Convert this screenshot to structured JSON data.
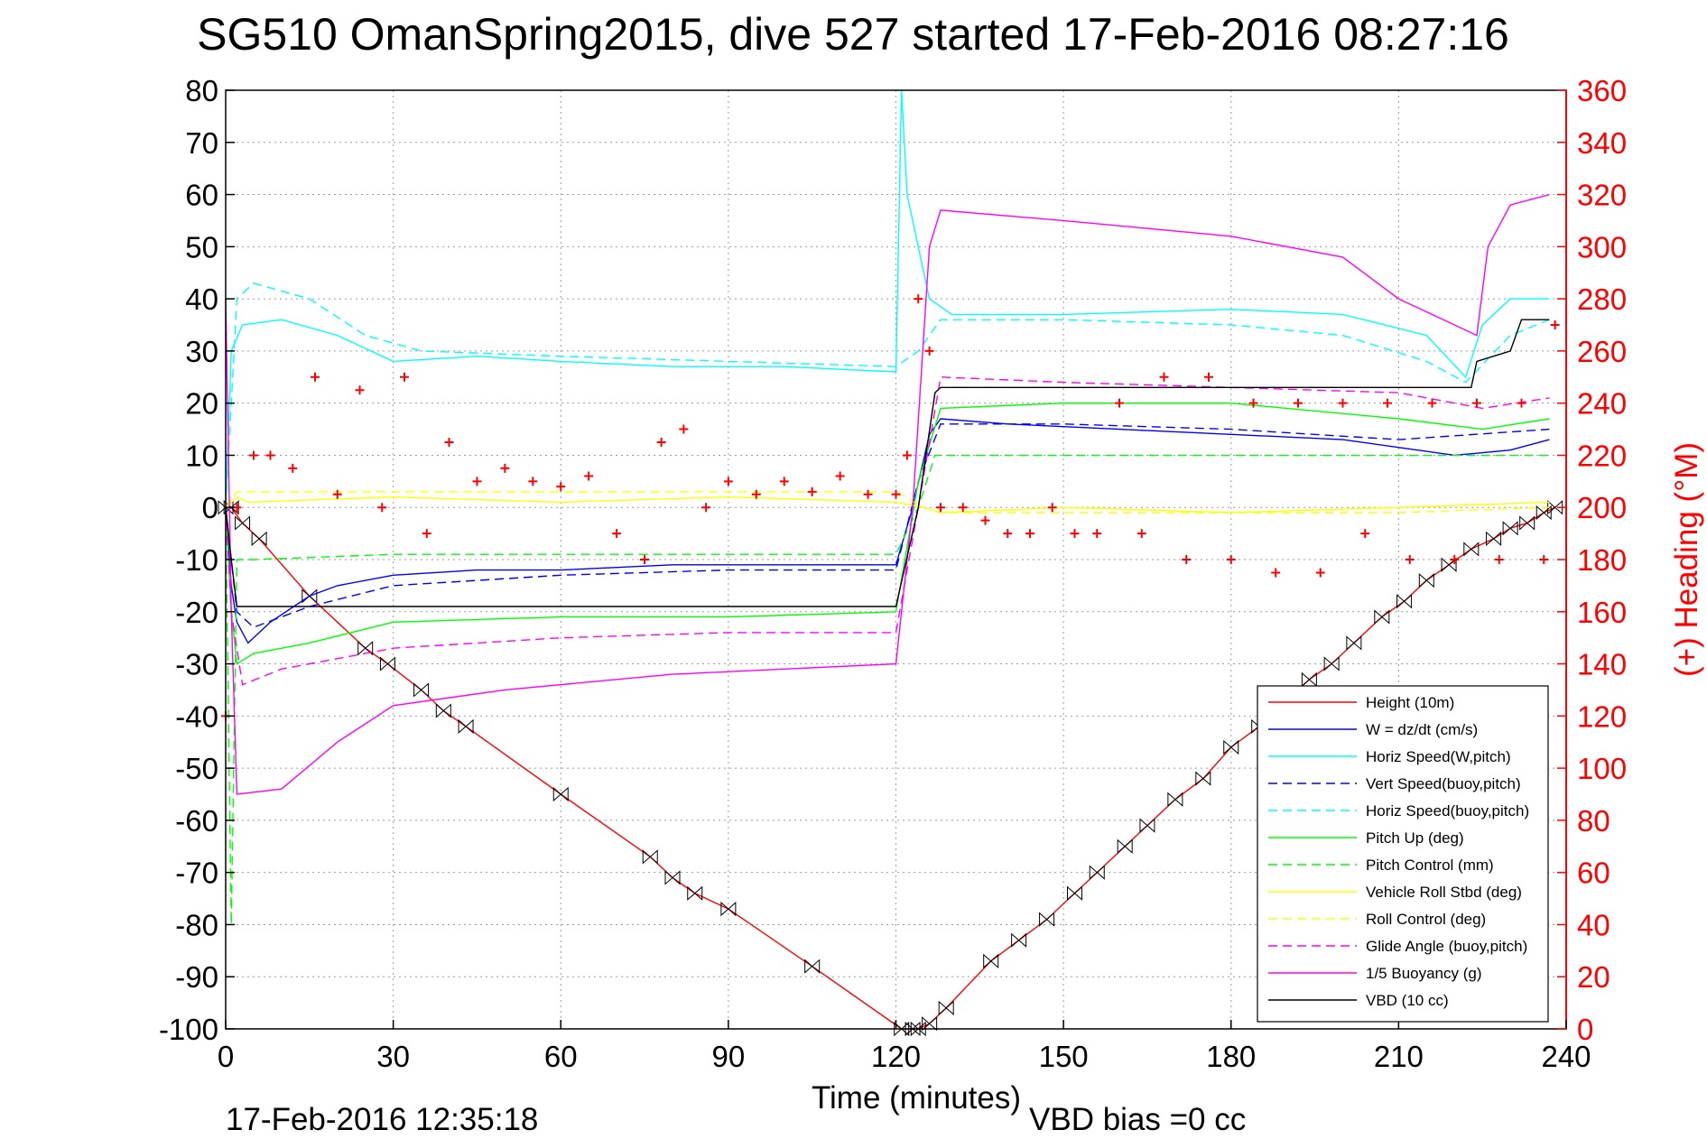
{
  "chart_data": {
    "type": "line",
    "title": "SG510 OmanSpring2015, dive 527 started 17-Feb-2016 08:27:16",
    "xlabel": "Time (minutes)",
    "ylabel": "",
    "y2label": "(+) Heading (°M)",
    "xlim": [
      0,
      240
    ],
    "ylim": [
      -100,
      80
    ],
    "y2lim": [
      0,
      360
    ],
    "xticks": [
      0,
      30,
      60,
      90,
      120,
      150,
      180,
      210,
      240
    ],
    "yticks": [
      80,
      70,
      60,
      50,
      40,
      30,
      20,
      10,
      0,
      -10,
      -20,
      -30,
      -40,
      -50,
      -60,
      -70,
      -80,
      -90,
      -100
    ],
    "y2ticks": [
      360,
      340,
      320,
      300,
      280,
      260,
      240,
      220,
      200,
      180,
      160,
      140,
      120,
      100,
      80,
      60,
      40,
      20,
      0
    ],
    "grid": true,
    "legend_position": "lower-right",
    "annotations": [
      "17-Feb-2016 12:35:18",
      "VBD bias =0 cc"
    ],
    "series": [
      {
        "name": "Height (10m)",
        "color": "#ff0000",
        "style": "solid",
        "marker": "bowtie",
        "x": [
          0,
          1,
          3,
          6,
          15,
          25,
          29,
          35,
          39,
          43,
          60,
          76,
          80,
          84,
          90,
          105,
          121,
          123,
          124,
          126,
          129,
          137,
          142,
          147,
          152,
          156,
          161,
          165,
          170,
          175,
          180,
          185,
          194,
          198,
          202,
          207,
          211,
          215,
          219,
          223,
          227,
          230,
          233,
          236,
          238
        ],
        "values": [
          0,
          0,
          -3,
          -6,
          -17,
          -27,
          -30,
          -35,
          -39,
          -42,
          -55,
          -67,
          -71,
          -74,
          -77,
          -88,
          -100,
          -100,
          -100,
          -99,
          -96,
          -87,
          -83,
          -79,
          -74,
          -70,
          -65,
          -61,
          -56,
          -52,
          -46,
          -42,
          -33,
          -30,
          -26,
          -21,
          -18,
          -14,
          -11,
          -8,
          -6,
          -4,
          -3,
          -1,
          0
        ]
      },
      {
        "name": "W = dz/dt (cm/s)",
        "color": "#0000ff",
        "style": "solid",
        "x": [
          0,
          1,
          2,
          4,
          8,
          15,
          20,
          30,
          45,
          60,
          80,
          100,
          120,
          123,
          126,
          128,
          140,
          160,
          180,
          200,
          220,
          230,
          237
        ],
        "values": [
          0,
          -15,
          -22,
          -26,
          -22,
          -17,
          -15,
          -13,
          -12,
          -12,
          -11,
          -11,
          -11,
          0,
          14,
          17,
          16,
          15,
          14,
          13,
          10,
          11,
          13
        ]
      },
      {
        "name": "Horiz Speed(W,pitch)",
        "color": "#00ffff",
        "style": "solid",
        "x": [
          0,
          1,
          3,
          10,
          20,
          30,
          45,
          60,
          80,
          100,
          120,
          121,
          122,
          126,
          130,
          150,
          180,
          200,
          215,
          222,
          225,
          230,
          237
        ],
        "values": [
          0,
          30,
          35,
          36,
          33,
          28,
          29,
          28,
          27,
          27,
          26,
          80,
          60,
          40,
          37,
          37,
          38,
          37,
          33,
          25,
          35,
          40,
          40
        ]
      },
      {
        "name": "Vert Speed(buoy,pitch)",
        "color": "#0000ff",
        "style": "dashed",
        "x": [
          0,
          2,
          5,
          15,
          30,
          60,
          90,
          120,
          124,
          128,
          150,
          180,
          210,
          237
        ],
        "values": [
          0,
          -20,
          -23,
          -19,
          -15,
          -13,
          -12,
          -12,
          5,
          16,
          16,
          15,
          13,
          15
        ]
      },
      {
        "name": "Horiz Speed(buoy,pitch)",
        "color": "#00ffff",
        "style": "dashed",
        "x": [
          0,
          2,
          5,
          15,
          25,
          35,
          60,
          90,
          120,
          124,
          128,
          150,
          180,
          200,
          215,
          222,
          230,
          237
        ],
        "values": [
          0,
          40,
          43,
          40,
          33,
          30,
          29,
          28,
          27,
          30,
          36,
          36,
          35,
          33,
          28,
          24,
          33,
          36
        ]
      },
      {
        "name": "Pitch Up (deg)",
        "color": "#00ff00",
        "style": "solid",
        "x": [
          0,
          1,
          2,
          5,
          15,
          30,
          60,
          90,
          120,
          124,
          128,
          150,
          180,
          210,
          225,
          237
        ],
        "values": [
          0,
          -20,
          -30,
          -28,
          -26,
          -22,
          -21,
          -21,
          -20,
          5,
          19,
          20,
          20,
          17,
          15,
          17
        ]
      },
      {
        "name": "Pitch Control (mm)",
        "color": "#00ff00",
        "style": "dashed",
        "x": [
          0,
          1,
          2,
          5,
          30,
          60,
          90,
          120,
          124,
          127,
          150,
          180,
          210,
          237
        ],
        "values": [
          0,
          -80,
          -10,
          -10,
          -9,
          -9,
          -9,
          -9,
          0,
          10,
          10,
          10,
          10,
          10
        ]
      },
      {
        "name": "Vehicle Roll Stbd (deg)",
        "color": "#ffff00",
        "style": "solid",
        "x": [
          0,
          2,
          4,
          30,
          60,
          90,
          120,
          125,
          128,
          150,
          180,
          210,
          237
        ],
        "values": [
          0,
          2,
          1,
          2,
          1,
          2,
          1,
          0,
          -1,
          0,
          -1,
          0,
          1
        ]
      },
      {
        "name": "Roll Control (deg)",
        "color": "#ffff00",
        "style": "dashed",
        "x": [
          0,
          2,
          4,
          30,
          60,
          90,
          120,
          125,
          128,
          150,
          180,
          210,
          237
        ],
        "values": [
          0,
          3,
          3,
          3,
          3,
          3,
          3,
          0,
          -1,
          -1,
          -1,
          -1,
          0
        ]
      },
      {
        "name": "Glide Angle (buoy,pitch)",
        "color": "#ff00ff",
        "style": "dashed",
        "x": [
          0,
          1,
          3,
          10,
          30,
          60,
          90,
          120,
          124,
          128,
          150,
          180,
          210,
          225,
          237
        ],
        "values": [
          0,
          -20,
          -34,
          -31,
          -27,
          -25,
          -24,
          -24,
          0,
          25,
          24,
          23,
          22,
          19,
          21
        ]
      },
      {
        "name": "1/5 Buoyancy (g)",
        "color": "#ff00ff",
        "style": "solid",
        "x": [
          0,
          1,
          2,
          10,
          20,
          30,
          50,
          80,
          100,
          120,
          123,
          126,
          128,
          150,
          180,
          200,
          210,
          220,
          224,
          226,
          230,
          237
        ],
        "values": [
          40,
          -20,
          -55,
          -54,
          -45,
          -38,
          -35,
          -32,
          -31,
          -30,
          0,
          50,
          57,
          55,
          52,
          48,
          40,
          35,
          33,
          50,
          58,
          60
        ]
      },
      {
        "name": "VBD (10 cc)",
        "color": "#000000",
        "style": "solid",
        "x": [
          0,
          1,
          2,
          120,
          124,
          127,
          128,
          150,
          180,
          210,
          223,
          224,
          230,
          232,
          237
        ],
        "values": [
          0,
          -10,
          -19,
          -19,
          0,
          22,
          23,
          23,
          23,
          23,
          23,
          28,
          30,
          36,
          36
        ]
      },
      {
        "name": "Heading",
        "color": "#ff0000",
        "style": "markers",
        "marker": "+",
        "axis": "right",
        "x": [
          0,
          2,
          5,
          8,
          12,
          16,
          20,
          24,
          28,
          32,
          36,
          40,
          45,
          50,
          55,
          60,
          65,
          70,
          75,
          78,
          82,
          86,
          90,
          95,
          100,
          105,
          110,
          115,
          120,
          122,
          124,
          126,
          128,
          132,
          136,
          140,
          144,
          148,
          152,
          156,
          160,
          164,
          168,
          172,
          176,
          180,
          184,
          188,
          192,
          196,
          200,
          204,
          208,
          212,
          216,
          220,
          224,
          228,
          232,
          236,
          238
        ],
        "values": [
          120,
          200,
          220,
          220,
          215,
          250,
          205,
          245,
          200,
          250,
          190,
          225,
          210,
          215,
          210,
          208,
          212,
          190,
          180,
          225,
          230,
          200,
          210,
          205,
          210,
          206,
          212,
          205,
          205,
          220,
          280,
          260,
          200,
          200,
          195,
          190,
          190,
          200,
          190,
          190,
          240,
          190,
          250,
          180,
          250,
          180,
          240,
          175,
          240,
          175,
          240,
          190,
          240,
          180,
          240,
          180,
          240,
          180,
          240,
          180,
          270
        ]
      }
    ]
  }
}
